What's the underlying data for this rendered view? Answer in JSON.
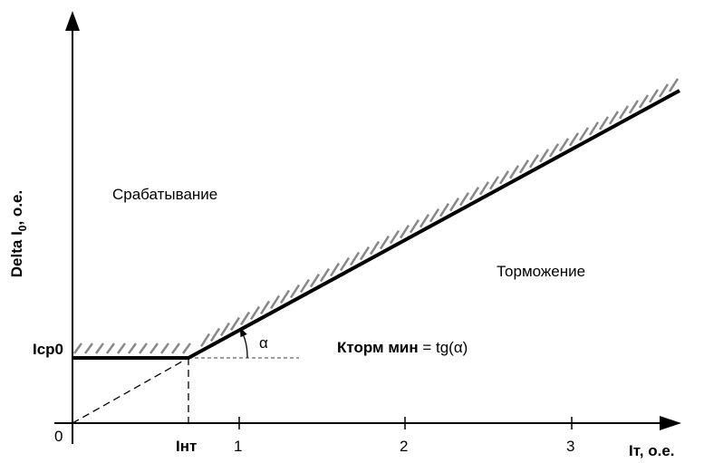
{
  "y_axis": {
    "label": {
      "main": "Delta I",
      "sub": "0",
      "rest": ", o.e."
    }
  },
  "x_axis": {
    "label": "Iт, o.e.",
    "origin": "0",
    "ticks": [
      "1",
      "2",
      "3"
    ],
    "knee": "Iнт"
  },
  "start_level": "Icp0",
  "regions": {
    "operate": "Срабатывание",
    "restrain": "Торможение"
  },
  "angle": "α",
  "formula": {
    "name": "Кторм мин",
    "expression": " = tg(α)"
  }
}
